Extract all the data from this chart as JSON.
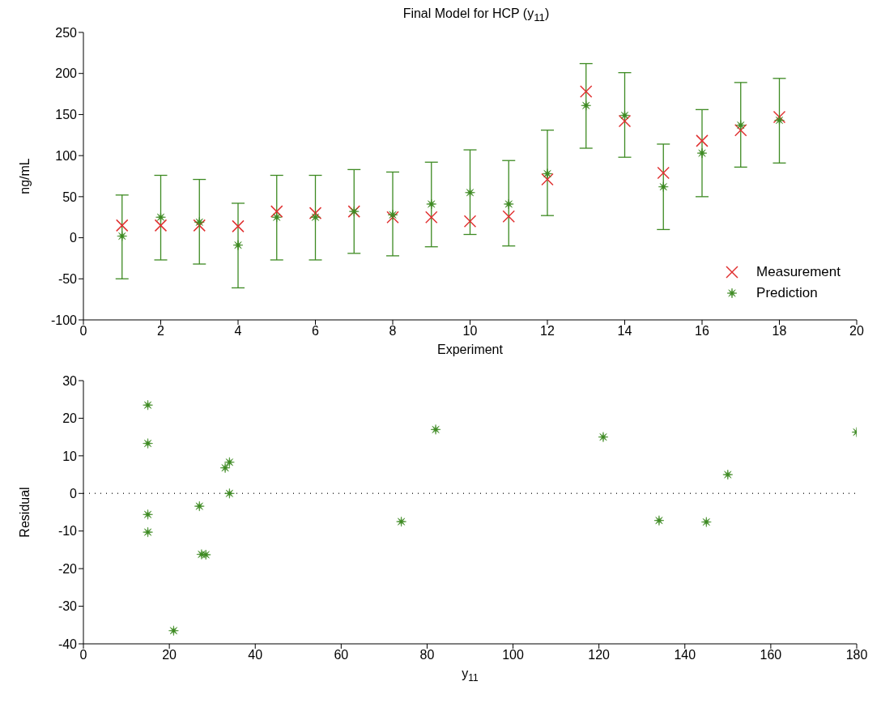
{
  "chart_data": [
    {
      "type": "scatter",
      "title": "Final Model for HCP (y$_{11}$)",
      "xlabel": "Experiment",
      "ylabel": "ng/mL",
      "x": [
        1,
        2,
        3,
        4,
        5,
        6,
        7,
        8,
        9,
        10,
        11,
        12,
        13,
        14,
        15,
        16,
        17,
        18
      ],
      "series": [
        {
          "name": "Measurement",
          "color": "#e03030",
          "marker": "cross",
          "values": [
            15,
            15,
            15,
            14,
            32,
            30,
            32,
            25,
            25,
            20,
            26,
            71,
            178,
            142,
            79,
            118,
            131,
            147
          ]
        },
        {
          "name": "Prediction",
          "color": "#3d8a22",
          "marker": "star",
          "values": [
            2,
            25,
            19,
            -9,
            25,
            25,
            32,
            28,
            41,
            55,
            41,
            78,
            161,
            149,
            62,
            103,
            137,
            143
          ],
          "errors": [
            [
              -50,
              52
            ],
            [
              -27,
              76
            ],
            [
              -32,
              71
            ],
            [
              -61,
              42
            ],
            [
              -27,
              76
            ],
            [
              -27,
              76
            ],
            [
              -19,
              83
            ],
            [
              -22,
              80
            ],
            [
              -11,
              92
            ],
            [
              4,
              107
            ],
            [
              -10,
              94
            ],
            [
              27,
              131
            ],
            [
              109,
              212
            ],
            [
              98,
              201
            ],
            [
              10,
              114
            ],
            [
              50,
              156
            ],
            [
              86,
              189
            ],
            [
              91,
              194
            ]
          ]
        }
      ],
      "xlim": [
        0,
        20
      ],
      "xticks": [
        0,
        2,
        4,
        6,
        8,
        10,
        12,
        14,
        16,
        18,
        20
      ],
      "ylim": [
        -100,
        250
      ],
      "yticks": [
        -100,
        -50,
        0,
        50,
        100,
        150,
        200,
        250
      ],
      "grid": false,
      "legend": "bottom right"
    },
    {
      "type": "scatter",
      "xlabel": "y$_{11}$",
      "ylabel": "Residual",
      "x": [
        15,
        15,
        15,
        15,
        21,
        27,
        27.5,
        28.5,
        33,
        34,
        34,
        74,
        82,
        121,
        134,
        145,
        150,
        180
      ],
      "series": [
        {
          "color": "#3d8a22",
          "marker": "star",
          "values": [
            23.5,
            13.3,
            -5.6,
            -10.3,
            -36.5,
            -3.4,
            -16.2,
            -16.3,
            6.8,
            8.3,
            0,
            -7.5,
            17,
            15,
            -7.2,
            -7.6,
            5,
            16.3
          ]
        }
      ],
      "xlim": [
        0,
        180
      ],
      "xticks": [
        0,
        20,
        40,
        60,
        80,
        100,
        120,
        140,
        160,
        180
      ],
      "ylim": [
        -40,
        30
      ],
      "yticks": [
        -40,
        -30,
        -20,
        -10,
        0,
        10,
        20,
        30
      ],
      "ref_lines": [
        {
          "axis": "y",
          "value": 0,
          "color": "#333333",
          "line_style": "dotted"
        }
      ],
      "grid": false,
      "legend": false
    }
  ]
}
